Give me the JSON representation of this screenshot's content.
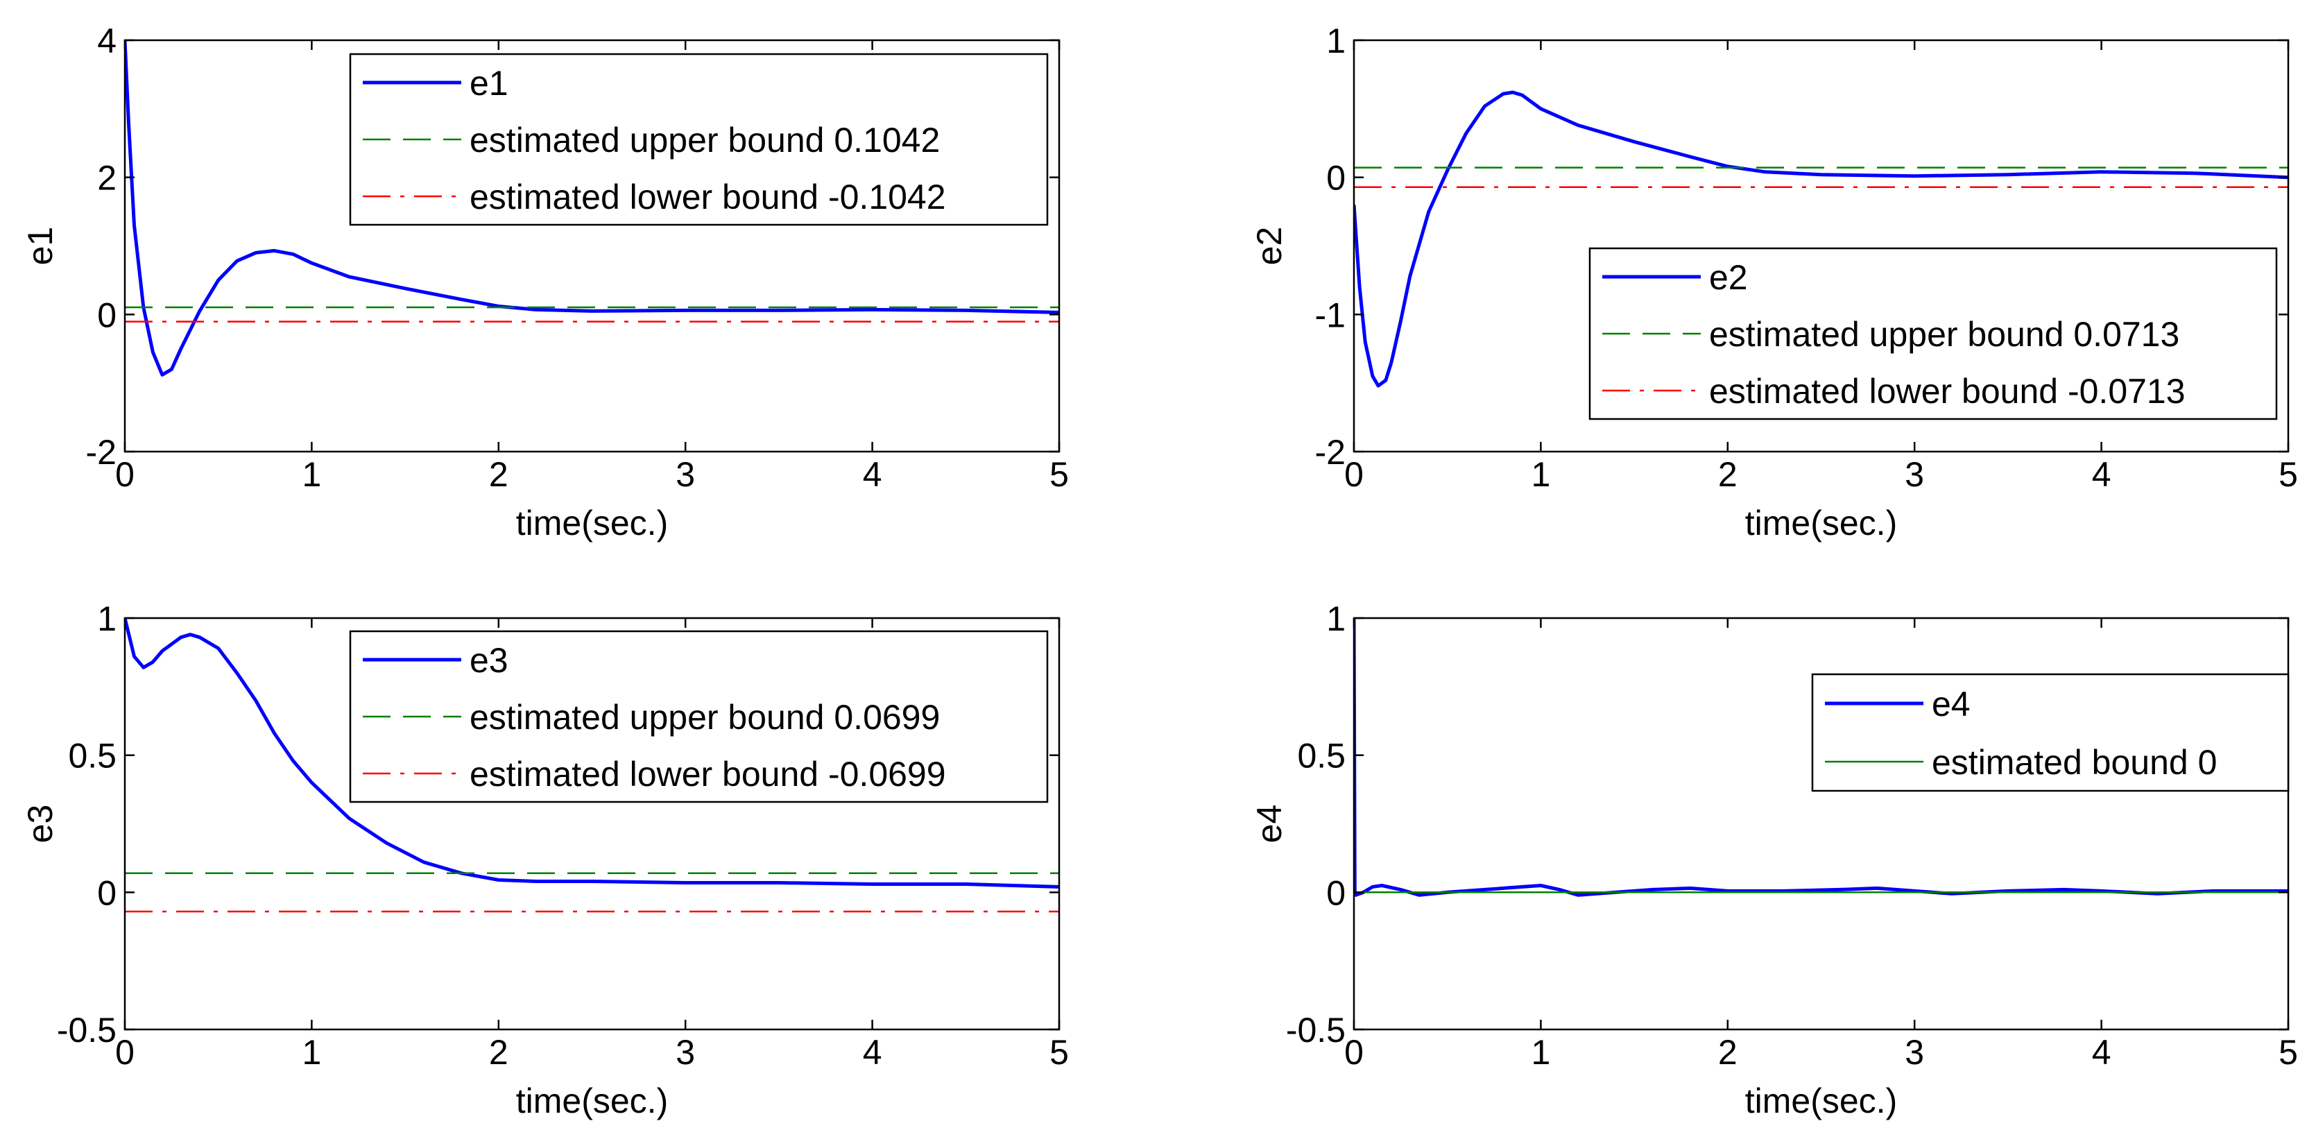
{
  "chart_data": [
    {
      "type": "line",
      "xlabel": "time(sec.)",
      "ylabel": "e1",
      "xlim": [
        0,
        5
      ],
      "ylim": [
        -2,
        4
      ],
      "xticks": [
        "0",
        "1",
        "2",
        "3",
        "4",
        "5"
      ],
      "yticks": [
        "-2",
        "0",
        "2",
        "4"
      ],
      "legend": {
        "position": "top-right",
        "entries": [
          "e1",
          "estimated upper bound 0.1042",
          "estimated lower bound -0.1042"
        ]
      },
      "series": [
        {
          "name": "e1",
          "color": "#0000ff",
          "style": "solid",
          "x": [
            0,
            0.02,
            0.05,
            0.1,
            0.15,
            0.2,
            0.25,
            0.3,
            0.4,
            0.5,
            0.6,
            0.7,
            0.8,
            0.9,
            1.0,
            1.2,
            1.5,
            1.8,
            2.0,
            2.2,
            2.5,
            3.0,
            3.5,
            4.0,
            4.5,
            5.0
          ],
          "y": [
            4.0,
            2.8,
            1.3,
            0.1,
            -0.55,
            -0.88,
            -0.8,
            -0.5,
            0.05,
            0.5,
            0.78,
            0.9,
            0.93,
            0.88,
            0.75,
            0.55,
            0.38,
            0.22,
            0.12,
            0.07,
            0.05,
            0.06,
            0.06,
            0.07,
            0.06,
            0.03
          ]
        },
        {
          "name": "estimated upper bound 0.1042",
          "color": "#008000",
          "style": "dash",
          "x": [
            0,
            5
          ],
          "y": [
            0.1042,
            0.1042
          ]
        },
        {
          "name": "estimated lower bound -0.1042",
          "color": "#ff0000",
          "style": "dashdot",
          "x": [
            0,
            5
          ],
          "y": [
            -0.1042,
            -0.1042
          ]
        }
      ]
    },
    {
      "type": "line",
      "xlabel": "time(sec.)",
      "ylabel": "e2",
      "xlim": [
        0,
        5
      ],
      "ylim": [
        -2,
        1
      ],
      "xticks": [
        "0",
        "1",
        "2",
        "3",
        "4",
        "5"
      ],
      "yticks": [
        "-2",
        "-1",
        "0",
        "1"
      ],
      "legend": {
        "position": "middle-right",
        "entries": [
          "e2",
          "estimated upper bound 0.0713",
          "estimated lower bound -0.0713"
        ]
      },
      "series": [
        {
          "name": "e2",
          "color": "#0000ff",
          "style": "solid",
          "x": [
            0,
            0.03,
            0.06,
            0.1,
            0.13,
            0.17,
            0.2,
            0.25,
            0.3,
            0.4,
            0.5,
            0.6,
            0.7,
            0.8,
            0.85,
            0.9,
            1.0,
            1.2,
            1.5,
            1.8,
            2.0,
            2.2,
            2.5,
            3.0,
            3.5,
            4.0,
            4.5,
            5.0
          ],
          "y": [
            -0.2,
            -0.8,
            -1.2,
            -1.45,
            -1.52,
            -1.48,
            -1.35,
            -1.05,
            -0.72,
            -0.25,
            0.05,
            0.32,
            0.52,
            0.61,
            0.62,
            0.6,
            0.5,
            0.38,
            0.26,
            0.15,
            0.08,
            0.04,
            0.02,
            0.01,
            0.02,
            0.04,
            0.03,
            0.0
          ]
        },
        {
          "name": "estimated upper bound 0.0713",
          "color": "#008000",
          "style": "dash",
          "x": [
            0,
            5
          ],
          "y": [
            0.0713,
            0.0713
          ]
        },
        {
          "name": "estimated lower bound -0.0713",
          "color": "#ff0000",
          "style": "dashdot",
          "x": [
            0,
            5
          ],
          "y": [
            -0.0713,
            -0.0713
          ]
        }
      ]
    },
    {
      "type": "line",
      "xlabel": "time(sec.)",
      "ylabel": "e3",
      "xlim": [
        0,
        5
      ],
      "ylim": [
        -0.5,
        1
      ],
      "xticks": [
        "0",
        "1",
        "2",
        "3",
        "4",
        "5"
      ],
      "yticks": [
        "-0.5",
        "0",
        "0.5",
        "1"
      ],
      "legend": {
        "position": "top-right",
        "entries": [
          "e3",
          "estimated upper bound 0.0699",
          "estimated lower bound -0.0699"
        ]
      },
      "series": [
        {
          "name": "e3",
          "color": "#0000ff",
          "style": "solid",
          "x": [
            0,
            0.05,
            0.1,
            0.15,
            0.2,
            0.3,
            0.35,
            0.4,
            0.5,
            0.6,
            0.7,
            0.8,
            0.9,
            1.0,
            1.2,
            1.4,
            1.6,
            1.8,
            2.0,
            2.2,
            2.5,
            3.0,
            3.5,
            4.0,
            4.5,
            5.0
          ],
          "y": [
            1.0,
            0.86,
            0.82,
            0.84,
            0.88,
            0.93,
            0.94,
            0.93,
            0.89,
            0.8,
            0.7,
            0.58,
            0.48,
            0.4,
            0.27,
            0.18,
            0.11,
            0.07,
            0.045,
            0.04,
            0.04,
            0.035,
            0.035,
            0.03,
            0.03,
            0.02
          ]
        },
        {
          "name": "estimated upper bound 0.0699",
          "color": "#008000",
          "style": "dash",
          "x": [
            0,
            5
          ],
          "y": [
            0.0699,
            0.0699
          ]
        },
        {
          "name": "estimated lower bound -0.0699",
          "color": "#ff0000",
          "style": "dashdot",
          "x": [
            0,
            5
          ],
          "y": [
            -0.0699,
            -0.0699
          ]
        }
      ]
    },
    {
      "type": "line",
      "xlabel": "time(sec.)",
      "ylabel": "e4",
      "xlim": [
        0,
        5
      ],
      "ylim": [
        -0.5,
        1
      ],
      "xticks": [
        "0",
        "1",
        "2",
        "3",
        "4",
        "5"
      ],
      "yticks": [
        "-0.5",
        "0",
        "0.5",
        "1"
      ],
      "legend": {
        "position": "top-right",
        "entries": [
          "e4",
          "estimated bound 0"
        ]
      },
      "series": [
        {
          "name": "e4",
          "color": "#0000ff",
          "style": "solid",
          "x": [
            0,
            0.005,
            0.01,
            0.05,
            0.1,
            0.15,
            0.25,
            0.35,
            0.5,
            0.7,
            0.9,
            1.0,
            1.1,
            1.2,
            1.4,
            1.6,
            1.8,
            2.0,
            2.3,
            2.6,
            2.8,
            3.0,
            3.2,
            3.5,
            3.8,
            4.0,
            4.3,
            4.6,
            5.0
          ],
          "y": [
            1.0,
            0.0,
            -0.01,
            0.0,
            0.02,
            0.025,
            0.01,
            -0.01,
            0.0,
            0.01,
            0.02,
            0.025,
            0.01,
            -0.01,
            0.0,
            0.01,
            0.015,
            0.005,
            0.005,
            0.01,
            0.015,
            0.005,
            -0.005,
            0.005,
            0.01,
            0.005,
            -0.005,
            0.005,
            0.005
          ]
        },
        {
          "name": "estimated bound 0",
          "color": "#008000",
          "style": "solid",
          "x": [
            0,
            5
          ],
          "y": [
            0,
            0
          ]
        }
      ]
    }
  ]
}
